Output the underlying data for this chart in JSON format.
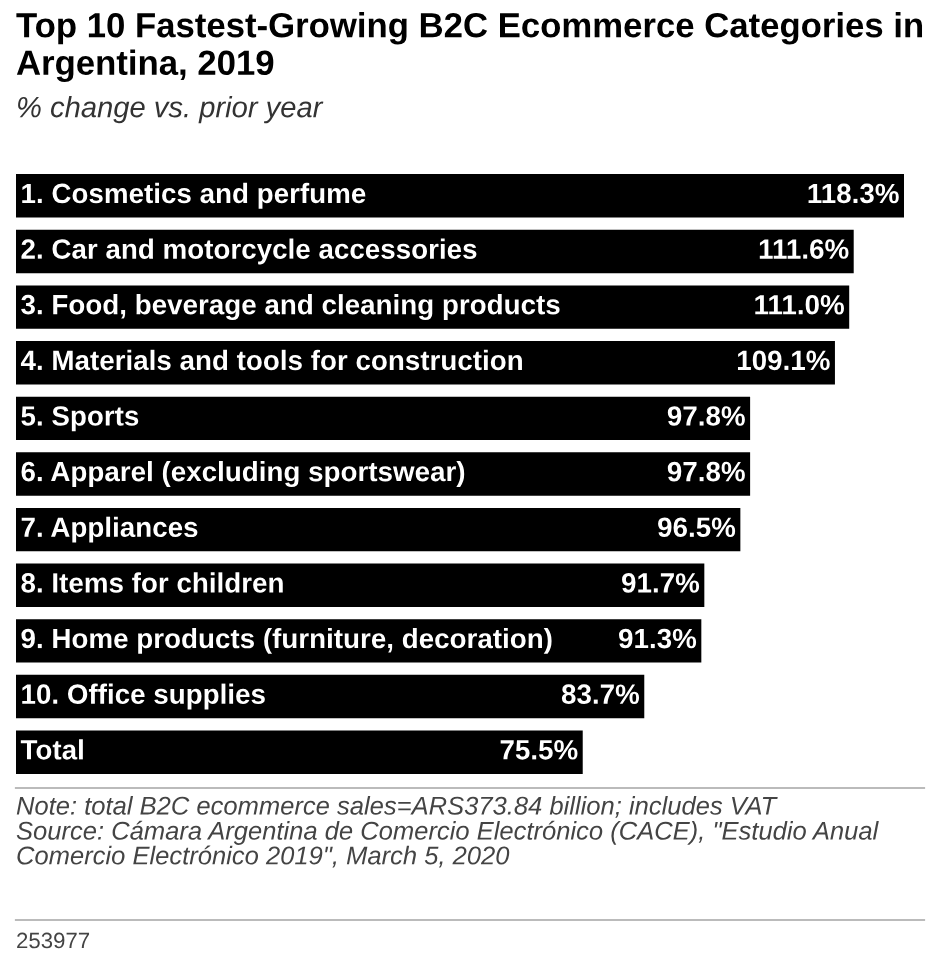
{
  "chart_data": {
    "type": "bar",
    "orientation": "horizontal",
    "title": "Top 10 Fastest-Growing B2C Ecommerce Categories in Argentina, 2019",
    "subtitle": "% change vs. prior year",
    "categories": [
      "1. Cosmetics and perfume",
      "2. Car and motorcycle accessories",
      "3. Food, beverage and cleaning products",
      "4. Materials and tools for construction",
      "5. Sports",
      "6. Apparel (excluding sportswear)",
      "7. Appliances",
      "8. Items for children",
      "9. Home products (furniture, decoration)",
      "10. Office supplies",
      "Total"
    ],
    "values": [
      118.3,
      111.6,
      111.0,
      109.1,
      97.8,
      97.8,
      96.5,
      91.7,
      91.3,
      83.7,
      75.5
    ],
    "value_labels": [
      "118.3%",
      "111.6%",
      "111.0%",
      "109.1%",
      "97.8%",
      "97.8%",
      "96.5%",
      "91.7%",
      "91.3%",
      "83.7%",
      "75.5%"
    ],
    "color": "#000000",
    "annotations": [
      "Note: total B2C ecommerce sales=ARS373.84 billion; includes VAT",
      "Source: Cámara Argentina de Comercio Electrónico (CACE), \"Estudio Anual Comercio Electrónico 2019\", March 5, 2020",
      "253977"
    ]
  }
}
